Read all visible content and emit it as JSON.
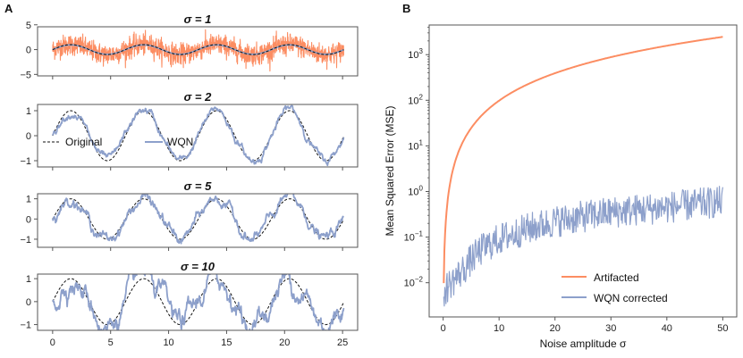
{
  "panel_a_label": "A",
  "panel_b_label": "B",
  "colors": {
    "artifacted": "#fc8d62",
    "wqn": "#8da0cb",
    "original": "#111111",
    "axis": "#555555"
  },
  "chart_data": [
    {
      "type": "line",
      "title": "σ = 1",
      "xlim": [
        -1.3,
        26.3
      ],
      "ylim": [
        -5.3,
        4.6
      ],
      "yticks": [
        -5,
        0,
        5
      ],
      "ytick_labels": [
        "−5",
        "0",
        "5"
      ],
      "series": [
        {
          "name": "Artifacted",
          "kind": "noisy",
          "noise_sigma": 1,
          "wave": "sin(x)",
          "x_range": [
            0,
            25.1
          ]
        },
        {
          "name": "Original",
          "kind": "sin",
          "x_range": [
            0,
            25.1
          ]
        },
        {
          "name": "WQN",
          "kind": "sin-approx",
          "x_range": [
            0,
            25.1
          ]
        }
      ]
    },
    {
      "type": "line",
      "title": "σ = 2",
      "xlim": [
        -1.3,
        26.3
      ],
      "ylim": [
        -1.25,
        1.25
      ],
      "yticks": [
        -1,
        0,
        1
      ],
      "ytick_labels": [
        "−1",
        "0",
        "1"
      ],
      "legend": {
        "placement": "center-left",
        "entries": [
          "Original",
          "WQN"
        ]
      },
      "series": [
        {
          "name": "Original",
          "kind": "sin",
          "x_range": [
            0,
            25.1
          ]
        },
        {
          "name": "WQN",
          "kind": "wqn",
          "distortion": 0.08,
          "x_range": [
            0,
            25.1
          ]
        }
      ]
    },
    {
      "type": "line",
      "title": "σ = 5",
      "xlim": [
        -1.3,
        26.3
      ],
      "ylim": [
        -1.4,
        1.25
      ],
      "yticks": [
        -1,
        0,
        1
      ],
      "ytick_labels": [
        "−1",
        "0",
        "1"
      ],
      "series": [
        {
          "name": "Original",
          "kind": "sin",
          "x_range": [
            0,
            25.1
          ]
        },
        {
          "name": "WQN",
          "kind": "wqn",
          "distortion": 0.14,
          "x_range": [
            0,
            25.1
          ]
        }
      ]
    },
    {
      "type": "line",
      "title": "σ = 10",
      "xlim": [
        -1.3,
        26.3
      ],
      "ylim": [
        -1.25,
        1.2
      ],
      "yticks": [
        -1,
        0,
        1
      ],
      "ytick_labels": [
        "−1",
        "0",
        "1"
      ],
      "xticks": [
        0,
        5,
        10,
        15,
        20,
        25
      ],
      "xtick_labels": [
        "0",
        "5",
        "10",
        "15",
        "20",
        "25"
      ],
      "series": [
        {
          "name": "Original",
          "kind": "sin",
          "x_range": [
            0,
            25.1
          ]
        },
        {
          "name": "WQN",
          "kind": "wqn",
          "distortion": 0.24,
          "x_range": [
            0,
            25.1
          ]
        }
      ]
    },
    {
      "type": "line",
      "yscale": "log",
      "xlabel": "Noise amplitude σ",
      "ylabel": "Mean Squared Error (MSE)",
      "xlim": [
        -2.5,
        52.5
      ],
      "ylim_log10": [
        -2.75,
        3.65
      ],
      "xticks": [
        0,
        10,
        20,
        30,
        40,
        50
      ],
      "xtick_labels": [
        "0",
        "10",
        "20",
        "30",
        "40",
        "50"
      ],
      "ytick_exponents": [
        -2,
        -1,
        0,
        1,
        2,
        3
      ],
      "ytick_base": "10",
      "legend": {
        "placement": "bottom-right",
        "entries": [
          "Artifacted",
          "WQN corrected"
        ]
      },
      "series": [
        {
          "name": "Artifacted",
          "formula": "sigma^2",
          "x": [
            0.1,
            50
          ]
        },
        {
          "name": "WQN corrected",
          "x": [
            0.1,
            1,
            2,
            3,
            4,
            5,
            7,
            10,
            15,
            20,
            25,
            30,
            40,
            50
          ],
          "y": [
            0.006,
            0.009,
            0.012,
            0.016,
            0.022,
            0.032,
            0.055,
            0.09,
            0.15,
            0.22,
            0.28,
            0.35,
            0.45,
            0.6
          ],
          "noise": "log-jitter ±0.35"
        }
      ]
    }
  ]
}
